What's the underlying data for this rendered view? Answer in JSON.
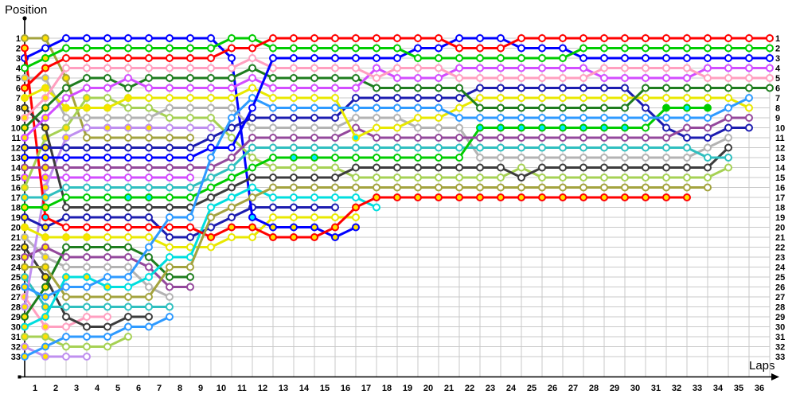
{
  "titles": {
    "y_axis": "Position",
    "x_axis": "Laps"
  },
  "axis": {
    "lap_labels": [
      "1",
      "2",
      "3",
      "4",
      "5",
      "6",
      "7",
      "8",
      "9",
      "10",
      "11",
      "12",
      "13",
      "14",
      "15",
      "16",
      "17",
      "18",
      "19",
      "20",
      "21",
      "22",
      "23",
      "24",
      "25",
      "26",
      "27",
      "28",
      "29",
      "30",
      "31",
      "32",
      "33",
      "34",
      "35",
      "36"
    ],
    "position_labels_left": [
      "1",
      "2",
      "3",
      "4",
      "5",
      "6",
      "7",
      "8",
      "9",
      "10",
      "11",
      "12",
      "13",
      "14",
      "15",
      "16",
      "17",
      "18",
      "19",
      "20",
      "21",
      "22",
      "23",
      "24",
      "25",
      "26",
      "27",
      "28",
      "29",
      "30",
      "31",
      "32",
      "33"
    ],
    "position_labels_right": [
      "1",
      "2",
      "3",
      "4",
      "5",
      "6",
      "7",
      "8",
      "9",
      "10",
      "11",
      "12",
      "13",
      "14",
      "15",
      "16",
      "17",
      "18",
      "19",
      "20",
      "21",
      "22",
      "23",
      "24",
      "25",
      "26",
      "27",
      "28",
      "29",
      "30",
      "31",
      "32",
      "33"
    ]
  },
  "colors": {
    "grid": "#c9c9c9",
    "axis": "#000000",
    "marker_fill_default": "#ffffff",
    "marker_fill_flag": "#ffe100",
    "marker_fill_pit": "#00e8ff"
  },
  "chart_data": {
    "type": "line",
    "title": "Race lap chart: car position by lap",
    "xlabel": "Laps",
    "ylabel": "Position",
    "x_range": [
      0,
      36
    ],
    "y_range": [
      1,
      33
    ],
    "grid": true,
    "legend_position": "none",
    "cars": [
      {
        "id": "r1",
        "color": "#ff0000"
      },
      {
        "id": "r2",
        "color": "#ff0000"
      },
      {
        "id": "g1",
        "color": "#00cc00"
      },
      {
        "id": "g2",
        "color": "#00cc00"
      },
      {
        "id": "b1",
        "color": "#0000ff"
      },
      {
        "id": "b2",
        "color": "#0000ff"
      },
      {
        "id": "pk1",
        "color": "#ff9fc0"
      },
      {
        "id": "pk2",
        "color": "#ff9fc0"
      },
      {
        "id": "dg1",
        "color": "#1e7d1e"
      },
      {
        "id": "dg2",
        "color": "#1e7d1e"
      },
      {
        "id": "m1",
        "color": "#d24dff"
      },
      {
        "id": "m2",
        "color": "#d24dff"
      },
      {
        "id": "y1",
        "color": "#e8e800"
      },
      {
        "id": "y2",
        "color": "#e8e800"
      },
      {
        "id": "sb1",
        "color": "#2e9aff"
      },
      {
        "id": "sb2",
        "color": "#2e9aff"
      },
      {
        "id": "nv1",
        "color": "#1c1cb0"
      },
      {
        "id": "nv2",
        "color": "#1c1cb0"
      },
      {
        "id": "gy1",
        "color": "#b3b3b3"
      },
      {
        "id": "gy2",
        "color": "#b3b3b3"
      },
      {
        "id": "pu1",
        "color": "#94489c"
      },
      {
        "id": "pu2",
        "color": "#94489c"
      },
      {
        "id": "tl1",
        "color": "#2fbfbf"
      },
      {
        "id": "tl2",
        "color": "#2fbfbf"
      },
      {
        "id": "yg1",
        "color": "#a6d154"
      },
      {
        "id": "yg2",
        "color": "#a6d154"
      },
      {
        "id": "ol1",
        "color": "#a3a33e"
      },
      {
        "id": "ol2",
        "color": "#a3a33e"
      },
      {
        "id": "bk1",
        "color": "#3c3c3c"
      },
      {
        "id": "bk2",
        "color": "#3c3c3c"
      },
      {
        "id": "vi1",
        "color": "#bf8fef"
      },
      {
        "id": "vi2",
        "color": "#bf8fef"
      },
      {
        "id": "cy1",
        "color": "#00dede"
      }
    ],
    "draw_order": [
      "vi2",
      "pk2",
      "yg2",
      "bk2",
      "tl2",
      "sb2",
      "gy2",
      "ol2",
      "dg2",
      "pu2",
      "m2",
      "vi1",
      "nv2",
      "y2",
      "b1",
      "cy1",
      "r2",
      "ol1",
      "yg1",
      "bk1",
      "gy1",
      "tl1",
      "g2",
      "nv1",
      "pu1",
      "y1",
      "sb1",
      "dg1",
      "m1",
      "pk1",
      "b2",
      "g1",
      "r1"
    ],
    "orders_by_lap": [
      [
        "ol2",
        "r2",
        "b1",
        "g1",
        "gy1",
        "r1",
        "y1",
        "bk1",
        "pk1",
        "dg1",
        "m1",
        "nv1",
        "b2",
        "pu1",
        "m2",
        "yg1",
        "tl1",
        "g2",
        "nv2",
        "y2",
        "gy2",
        "bk2",
        "pu2",
        "ol1",
        "tl2",
        "sb1",
        "pk2",
        "vi1",
        "dg2",
        "cy1",
        "yg2",
        "vi2",
        "sb2"
      ],
      [
        "ol2",
        "b1",
        "g1",
        "r1",
        "gy1",
        "y1",
        "pk1",
        "dg1",
        "m1",
        "bk1",
        "yg1",
        "nv1",
        "b2",
        "pu1",
        "m2",
        "vi1",
        "tl1",
        "g2",
        "r2",
        "nv2",
        "y2",
        "pu2",
        "gy2",
        "ol1",
        "bk2",
        "dg2",
        "sb1",
        "tl2",
        "cy1",
        "pk2",
        "yg2",
        "sb2",
        "vi2"
      ],
      [
        "b1",
        "g1",
        "r1",
        "pk1",
        "ol2",
        "dg1",
        "m1",
        "y1",
        "gy1",
        "yg1",
        "vi1",
        "nv1",
        "b2",
        "pu1",
        "m2",
        "tl1",
        "g2",
        "bk1",
        "nv2",
        "r2",
        "y2",
        "dg2",
        "pu2",
        "gy2",
        "cy1",
        "sb1",
        "ol1",
        "tl2",
        "bk2",
        "pk2",
        "sb2",
        "yg2",
        "vi2"
      ],
      [
        "b1",
        "g1",
        "r1",
        "pk1",
        "dg1",
        "m1",
        "yg1",
        "y1",
        "gy1",
        "vi1",
        "ol2",
        "nv1",
        "b2",
        "pu1",
        "m2",
        "tl1",
        "g2",
        "bk1",
        "nv2",
        "r2",
        "y2",
        "dg2",
        "pu2",
        "gy2",
        "cy1",
        "sb1",
        "ol1",
        "tl2",
        "pk2",
        "bk2",
        "sb2",
        "yg2",
        "vi2"
      ],
      [
        "b1",
        "g1",
        "r1",
        "pk1",
        "dg1",
        "m1",
        "yg1",
        "y1",
        "gy1",
        "vi1",
        "ol2",
        "nv1",
        "b2",
        "pu1",
        "m2",
        "tl1",
        "g2",
        "bk1",
        "nv2",
        "r2",
        "y2",
        "dg2",
        "pu2",
        "gy2",
        "sb1",
        "cy1",
        "ol1",
        "tl2",
        "pk2",
        "bk2",
        "sb2",
        "yg2"
      ],
      [
        "b1",
        "g1",
        "r1",
        "pk1",
        "m1",
        "dg1",
        "y1",
        "yg1",
        "gy1",
        "vi1",
        "ol2",
        "nv1",
        "b2",
        "pu1",
        "m2",
        "tl1",
        "g2",
        "bk1",
        "nv2",
        "r2",
        "y2",
        "dg2",
        "pu2",
        "gy2",
        "sb1",
        "cy1",
        "ol1",
        "tl2",
        "bk2",
        "sb2",
        "yg2"
      ],
      [
        "b1",
        "g1",
        "r1",
        "pk1",
        "dg1",
        "m1",
        "y1",
        "yg1",
        "gy1",
        "vi1",
        "ol2",
        "nv1",
        "b2",
        "pu1",
        "m2",
        "tl1",
        "g2",
        "bk1",
        "nv2",
        "r2",
        "y2",
        "sb1",
        "dg2",
        "pu2",
        "cy1",
        "gy2",
        "ol1",
        "tl2",
        "bk2",
        "sb2"
      ],
      [
        "b1",
        "g1",
        "r1",
        "pk1",
        "dg1",
        "m1",
        "y1",
        "gy1",
        "yg1",
        "vi1",
        "ol2",
        "nv1",
        "b2",
        "pu1",
        "m2",
        "tl1",
        "g2",
        "bk1",
        "sb1",
        "r2",
        "nv2",
        "y2",
        "cy1",
        "ol1",
        "dg2",
        "pu2",
        "gy2",
        "tl2",
        "sb2"
      ],
      [
        "b1",
        "g1",
        "r1",
        "pk1",
        "dg1",
        "m1",
        "y1",
        "gy1",
        "yg1",
        "vi1",
        "ol2",
        "nv1",
        "b2",
        "pu1",
        "m2",
        "tl1",
        "g2",
        "bk1",
        "sb1",
        "r2",
        "nv2",
        "y2",
        "cy1",
        "ol1",
        "dg2",
        "pu2"
      ],
      [
        "b1",
        "g1",
        "r1",
        "pk1",
        "dg1",
        "m1",
        "y1",
        "gy1",
        "yg1",
        "vi1",
        "nv1",
        "b2",
        "sb1",
        "pu1",
        "tl1",
        "g2",
        "bk1",
        "cy1",
        "ol1",
        "nv2",
        "r2",
        "y2"
      ],
      [
        "g1",
        "r1",
        "b1",
        "pk1",
        "dg1",
        "m1",
        "y1",
        "gy1",
        "sb1",
        "nv1",
        "yg1",
        "b2",
        "pu1",
        "tl1",
        "g2",
        "bk1",
        "cy1",
        "ol1",
        "nv2",
        "r2",
        "y2"
      ],
      [
        "g1",
        "r1",
        "pk1",
        "dg1",
        "m1",
        "y1",
        "sb1",
        "b2",
        "nv1",
        "gy1",
        "pu1",
        "tl1",
        "yg1",
        "g2",
        "bk1",
        "cy1",
        "ol1",
        "nv2",
        "b1",
        "r2",
        "y2"
      ],
      [
        "r1",
        "g1",
        "b2",
        "pk1",
        "dg1",
        "m1",
        "y1",
        "sb1",
        "nv1",
        "gy1",
        "pu1",
        "tl1",
        "g2",
        "yg1",
        "bk1",
        "ol1",
        "cy1",
        "nv2",
        "y2",
        "b1",
        "r2"
      ],
      [
        "r1",
        "g1",
        "b2",
        "pk1",
        "dg1",
        "m1",
        "y1",
        "sb1",
        "nv1",
        "gy1",
        "pu1",
        "tl1",
        "g2",
        "yg1",
        "bk1",
        "ol1",
        "cy1",
        "nv2",
        "y2",
        "b1",
        "r2"
      ],
      [
        "r1",
        "g1",
        "b2",
        "pk1",
        "dg1",
        "m1",
        "y1",
        "sb1",
        "nv1",
        "gy1",
        "pu1",
        "tl1",
        "g2",
        "yg1",
        "bk1",
        "ol1",
        "cy1",
        "nv2",
        "y2",
        "b1",
        "r2"
      ],
      [
        "r1",
        "g1",
        "b2",
        "pk1",
        "dg1",
        "m1",
        "y1",
        "sb1",
        "nv1",
        "gy1",
        "pu1",
        "tl1",
        "g2",
        "yg1",
        "bk1",
        "ol1",
        "cy1",
        "nv2",
        "y2",
        "r2",
        "b1"
      ],
      [
        "r1",
        "g1",
        "b2",
        "pk1",
        "dg1",
        "m1",
        "nv1",
        "sb1",
        "gy1",
        "pu1",
        "y1",
        "tl1",
        "g2",
        "bk1",
        "yg1",
        "ol1",
        "cy1",
        "r2",
        "y2",
        "b1"
      ],
      [
        "r1",
        "g1",
        "b2",
        "m1",
        "pk1",
        "dg1",
        "nv1",
        "sb1",
        "gy1",
        "y1",
        "pu1",
        "tl1",
        "g2",
        "bk1",
        "yg1",
        "ol1",
        "r2",
        "cy1"
      ],
      [
        "r1",
        "g1",
        "b2",
        "pk1",
        "m1",
        "dg1",
        "nv1",
        "sb1",
        "gy1",
        "y1",
        "pu1",
        "tl1",
        "g2",
        "bk1",
        "yg1",
        "ol1",
        "r2"
      ],
      [
        "r1",
        "b2",
        "g1",
        "pk1",
        "m1",
        "dg1",
        "nv1",
        "sb1",
        "y1",
        "gy1",
        "pu1",
        "tl1",
        "g2",
        "bk1",
        "yg1",
        "ol1",
        "r2"
      ],
      [
        "r1",
        "b2",
        "g1",
        "pk1",
        "m1",
        "dg1",
        "nv1",
        "sb1",
        "y1",
        "gy1",
        "pu1",
        "tl1",
        "g2",
        "bk1",
        "yg1",
        "ol1",
        "r2"
      ],
      [
        "b2",
        "r1",
        "g1",
        "m1",
        "pk1",
        "dg1",
        "nv1",
        "y1",
        "sb1",
        "gy1",
        "pu1",
        "tl1",
        "g2",
        "bk1",
        "yg1",
        "ol1",
        "r2"
      ],
      [
        "b2",
        "r1",
        "g1",
        "m1",
        "pk1",
        "nv1",
        "y1",
        "dg1",
        "sb1",
        "g2",
        "pu1",
        "tl1",
        "gy1",
        "bk1",
        "yg1",
        "ol1",
        "r2"
      ],
      [
        "b2",
        "r1",
        "g1",
        "m1",
        "pk1",
        "nv1",
        "y1",
        "dg1",
        "sb1",
        "g2",
        "pu1",
        "tl1",
        "gy1",
        "bk1",
        "yg1",
        "ol1",
        "r2"
      ],
      [
        "r1",
        "b2",
        "g1",
        "m1",
        "pk1",
        "nv1",
        "y1",
        "dg1",
        "sb1",
        "g2",
        "pu1",
        "tl1",
        "gy1",
        "yg1",
        "bk1",
        "ol1",
        "r2"
      ],
      [
        "r1",
        "b2",
        "g1",
        "m1",
        "pk1",
        "nv1",
        "y1",
        "dg1",
        "sb1",
        "g2",
        "pu1",
        "tl1",
        "gy1",
        "bk1",
        "yg1",
        "ol1",
        "r2"
      ],
      [
        "r1",
        "b2",
        "g1",
        "m1",
        "pk1",
        "nv1",
        "y1",
        "dg1",
        "sb1",
        "g2",
        "pu1",
        "tl1",
        "gy1",
        "bk1",
        "yg1",
        "ol1",
        "r2"
      ],
      [
        "r1",
        "g1",
        "b2",
        "m1",
        "pk1",
        "nv1",
        "y1",
        "dg1",
        "sb1",
        "g2",
        "pu1",
        "tl1",
        "gy1",
        "bk1",
        "yg1",
        "ol1",
        "r2"
      ],
      [
        "r1",
        "g1",
        "b2",
        "pk1",
        "m1",
        "nv1",
        "y1",
        "dg1",
        "sb1",
        "g2",
        "pu1",
        "tl1",
        "gy1",
        "bk1",
        "yg1",
        "ol1",
        "r2"
      ],
      [
        "r1",
        "g1",
        "b2",
        "pk1",
        "m1",
        "nv1",
        "y1",
        "dg1",
        "sb1",
        "g2",
        "pu1",
        "tl1",
        "gy1",
        "bk1",
        "yg1",
        "ol1",
        "r2"
      ],
      [
        "r1",
        "g1",
        "b2",
        "pk1",
        "m1",
        "dg1",
        "y1",
        "nv1",
        "sb1",
        "g2",
        "pu1",
        "tl1",
        "gy1",
        "bk1",
        "yg1",
        "ol1",
        "r2"
      ],
      [
        "r1",
        "g1",
        "b2",
        "pk1",
        "m1",
        "dg1",
        "y1",
        "g2",
        "sb1",
        "nv1",
        "pu1",
        "tl1",
        "gy1",
        "bk1",
        "yg1",
        "ol1",
        "r2"
      ],
      [
        "r1",
        "g1",
        "b2",
        "pk1",
        "m1",
        "dg1",
        "y1",
        "g2",
        "sb1",
        "pu1",
        "nv1",
        "tl1",
        "gy1",
        "bk1",
        "yg1",
        "ol1",
        "r2"
      ],
      [
        "r1",
        "g1",
        "b2",
        "m1",
        "pk1",
        "dg1",
        "y1",
        "g2",
        "sb1",
        "pu1",
        "nv1",
        "gy1",
        "tl1",
        "bk1",
        "yg1",
        "ol1"
      ],
      [
        "r1",
        "g1",
        "b2",
        "m1",
        "pk1",
        "dg1",
        "y1",
        "sb1",
        "pu1",
        "nv1",
        "gy1",
        "bk1",
        "tl1",
        "yg1"
      ],
      [
        "r1",
        "g1",
        "b2",
        "m1",
        "pk1",
        "dg1",
        "sb1",
        "y1",
        "pu1",
        "nv1"
      ],
      [
        "r1",
        "g1",
        "b2",
        "m1",
        "pk1",
        "dg1"
      ]
    ],
    "marker_fill_rules": [
      {
        "car": "all",
        "from": 0,
        "to": 1,
        "fill": "#ffe100"
      },
      {
        "car": "b1",
        "from": 0,
        "to": 1,
        "fill": "#ffffff"
      },
      {
        "car": "g1",
        "from": 0,
        "to": 0,
        "fill": "#ffffff"
      },
      {
        "car": "r2",
        "from": 1,
        "to": 1,
        "fill": "#00e8ff"
      },
      {
        "car": "ol2",
        "from": 2,
        "to": 2,
        "fill": "#ffe100"
      },
      {
        "car": "yg1",
        "from": 2,
        "to": 3,
        "fill": "#ffe100"
      },
      {
        "car": "vi1",
        "from": 2,
        "to": 2,
        "fill": "#ffe100"
      },
      {
        "car": "vi1",
        "from": 4,
        "to": 6,
        "fill": "#ffe100"
      },
      {
        "car": "y1",
        "from": 0,
        "to": 5,
        "fill": "#ffe100"
      },
      {
        "car": "y2",
        "from": 2,
        "to": 3,
        "fill": "#ffe100"
      },
      {
        "car": "cy1",
        "from": 2,
        "to": 4,
        "fill": "#ffe100"
      },
      {
        "car": "g2",
        "from": 5,
        "to": 6,
        "fill": "#00e8ff"
      },
      {
        "car": "r2",
        "from": 9,
        "to": 32,
        "fill": "#ffe100"
      },
      {
        "car": "b1",
        "from": 11,
        "to": 11,
        "fill": "#00e8ff"
      },
      {
        "car": "b1",
        "from": 12,
        "to": 16,
        "fill": "#ffe100"
      },
      {
        "car": "y1",
        "from": 16,
        "to": 16,
        "fill": "#00e8ff"
      },
      {
        "car": "g2",
        "from": 13,
        "to": 14,
        "fill": "#00e8ff"
      },
      {
        "car": "g2",
        "from": 22,
        "to": 29,
        "fill": "#00e8ff"
      },
      {
        "car": "g2",
        "from": 31,
        "to": 31,
        "fill": "#00cc00"
      },
      {
        "car": "g2",
        "from": 32,
        "to": 32,
        "fill": "#00e8ff"
      },
      {
        "car": "g2",
        "from": 33,
        "to": 33,
        "fill": "#00cc00"
      }
    ]
  }
}
